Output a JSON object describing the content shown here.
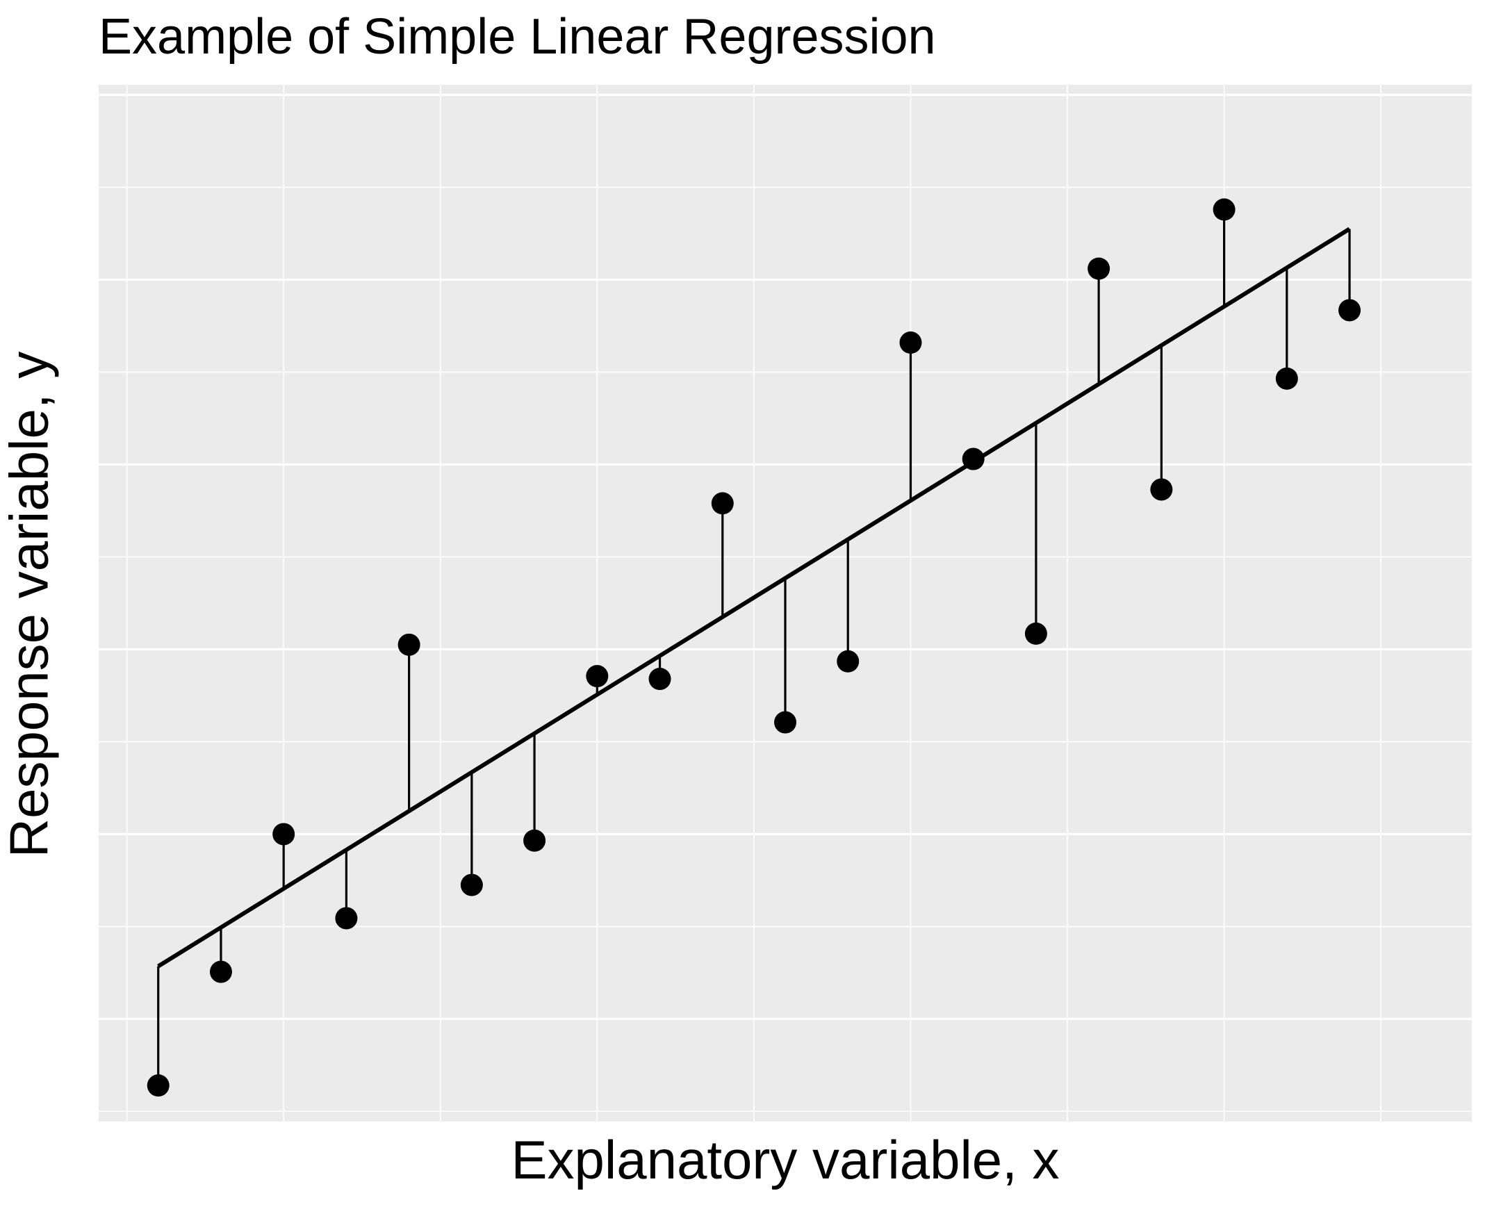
{
  "chart_data": {
    "type": "scatter",
    "title": "Example of Simple Linear Regression",
    "xlabel": "Explanatory variable, x",
    "ylabel": "Response variable, y",
    "xlim": [
      0.05,
      21.95
    ],
    "ylim": [
      0.89,
      12.11
    ],
    "grid": true,
    "tick_labels_shown": false,
    "background_color": "#EBEBEB",
    "grid_color": "#FFFFFF",
    "point_color": "#000000",
    "line_color": "#000000",
    "points": [
      {
        "x": 1,
        "y": 1.28
      },
      {
        "x": 2,
        "y": 2.51
      },
      {
        "x": 3,
        "y": 4.0
      },
      {
        "x": 4,
        "y": 3.09
      },
      {
        "x": 5,
        "y": 6.05
      },
      {
        "x": 6,
        "y": 3.45
      },
      {
        "x": 7,
        "y": 3.93
      },
      {
        "x": 8,
        "y": 5.71
      },
      {
        "x": 9,
        "y": 5.68
      },
      {
        "x": 10,
        "y": 7.58
      },
      {
        "x": 11,
        "y": 5.21
      },
      {
        "x": 12,
        "y": 5.87
      },
      {
        "x": 13,
        "y": 9.32
      },
      {
        "x": 14,
        "y": 8.06
      },
      {
        "x": 15,
        "y": 6.17
      },
      {
        "x": 16,
        "y": 10.12
      },
      {
        "x": 17,
        "y": 7.73
      },
      {
        "x": 18,
        "y": 10.76
      },
      {
        "x": 19,
        "y": 8.93
      },
      {
        "x": 20,
        "y": 9.67
      }
    ],
    "regression_line": {
      "intercept": 2.15,
      "slope": 0.42
    },
    "residual_segments": true
  }
}
